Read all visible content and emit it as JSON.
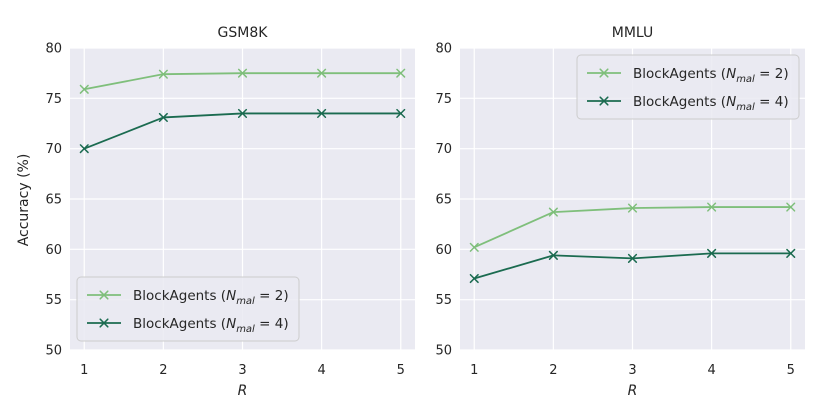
{
  "figure": {
    "ylabel": "Accuracy (%)"
  },
  "chart_data": [
    {
      "type": "line",
      "title": "GSM8K",
      "xlabel": "R",
      "ylabel": "Accuracy (%)",
      "x": [
        1,
        2,
        3,
        4,
        5
      ],
      "xticks": [
        "1",
        "2",
        "3",
        "4",
        "5"
      ],
      "ylim": [
        50,
        80
      ],
      "yticks": [
        "50",
        "55",
        "60",
        "65",
        "70",
        "75",
        "80"
      ],
      "grid": true,
      "legend_position": "lower-left",
      "series": [
        {
          "name": "BlockAgents (N_mal = 2)",
          "legend_prefix": "BlockAgents (",
          "legend_var": "N",
          "legend_sub": "mal",
          "legend_suffix": " = 2)",
          "values": [
            75.9,
            77.4,
            77.5,
            77.5,
            77.5
          ],
          "color": "#7fbf7b",
          "marker": "x"
        },
        {
          "name": "BlockAgents (N_mal = 4)",
          "legend_prefix": "BlockAgents (",
          "legend_var": "N",
          "legend_sub": "mal",
          "legend_suffix": " = 4)",
          "values": [
            70.0,
            73.1,
            73.5,
            73.5,
            73.5
          ],
          "color": "#1b6b50",
          "marker": "x"
        }
      ]
    },
    {
      "type": "line",
      "title": "MMLU",
      "xlabel": "R",
      "ylabel": "",
      "x": [
        1,
        2,
        3,
        4,
        5
      ],
      "xticks": [
        "1",
        "2",
        "3",
        "4",
        "5"
      ],
      "ylim": [
        50,
        80
      ],
      "yticks": [
        "50",
        "55",
        "60",
        "65",
        "70",
        "75",
        "80"
      ],
      "grid": true,
      "legend_position": "upper-right",
      "series": [
        {
          "name": "BlockAgents (N_mal = 2)",
          "legend_prefix": "BlockAgents (",
          "legend_var": "N",
          "legend_sub": "mal",
          "legend_suffix": " = 2)",
          "values": [
            60.2,
            63.7,
            64.1,
            64.2,
            64.2
          ],
          "color": "#7fbf7b",
          "marker": "x"
        },
        {
          "name": "BlockAgents (N_mal = 4)",
          "legend_prefix": "BlockAgents (",
          "legend_var": "N",
          "legend_sub": "mal",
          "legend_suffix": " = 4)",
          "values": [
            57.1,
            59.4,
            59.1,
            59.6,
            59.6
          ],
          "color": "#1b6b50",
          "marker": "x"
        }
      ]
    }
  ],
  "style": {
    "panel_background": "#eaeaf2",
    "grid_color": "#ffffff",
    "legend_border": "#cccccc"
  }
}
